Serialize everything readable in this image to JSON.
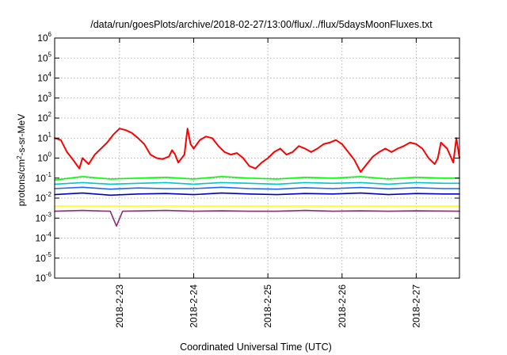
{
  "chart_data": {
    "type": "line",
    "title": "/data/run/goesPlots/archive/2018-02-27/13:00/flux/../flux/5daysMoonFluxes.txt",
    "xlabel": "Coordinated Universal Time (UTC)",
    "ylabel": {
      "base": "protons/cm",
      "sup": "2",
      "rest": "-s-sr-MeV"
    },
    "yscale": "log",
    "ylim": [
      1e-06,
      1000000.0
    ],
    "y_ticks": [
      {
        "mant": "10",
        "exp": "-6"
      },
      {
        "mant": "10",
        "exp": "-5"
      },
      {
        "mant": "10",
        "exp": "-4"
      },
      {
        "mant": "10",
        "exp": "-3"
      },
      {
        "mant": "10",
        "exp": "-2"
      },
      {
        "mant": "10",
        "exp": "-1"
      },
      {
        "mant": "10",
        "exp": "0"
      },
      {
        "mant": "10",
        "exp": "1"
      },
      {
        "mant": "10",
        "exp": "2"
      },
      {
        "mant": "10",
        "exp": "3"
      },
      {
        "mant": "10",
        "exp": "4"
      },
      {
        "mant": "10",
        "exp": "5"
      },
      {
        "mant": "10",
        "exp": "6"
      }
    ],
    "x_start": "2018-02-22T03:00",
    "x_end": "2018-02-27T14:00",
    "x_ticks": [
      {
        "label": "2018-2-23",
        "t": "2018-02-23T00:00"
      },
      {
        "label": "2018-2-24",
        "t": "2018-02-24T00:00"
      },
      {
        "label": "2018-2-25",
        "t": "2018-02-25T00:00"
      },
      {
        "label": "2018-2-26",
        "t": "2018-02-26T00:00"
      },
      {
        "label": "2018-2-27",
        "t": "2018-02-27T00:00"
      }
    ],
    "grid": true,
    "legend": "none",
    "series": [
      {
        "color": "#ff0000",
        "points": [
          [
            "2018-02-22T03:00",
            10
          ],
          [
            "2018-02-22T05:00",
            8
          ],
          [
            "2018-02-22T07:00",
            2
          ],
          [
            "2018-02-22T09:00",
            0.8
          ],
          [
            "2018-02-22T11:00",
            0.3
          ],
          [
            "2018-02-22T12:00",
            1
          ],
          [
            "2018-02-22T14:00",
            0.5
          ],
          [
            "2018-02-22T16:00",
            1.5
          ],
          [
            "2018-02-22T18:00",
            3
          ],
          [
            "2018-02-22T20:00",
            6
          ],
          [
            "2018-02-22T22:00",
            15
          ],
          [
            "2018-02-23T00:00",
            30
          ],
          [
            "2018-02-23T02:00",
            25
          ],
          [
            "2018-02-23T04:00",
            18
          ],
          [
            "2018-02-23T06:00",
            10
          ],
          [
            "2018-02-23T08:00",
            5
          ],
          [
            "2018-02-23T10:00",
            1.5
          ],
          [
            "2018-02-23T12:00",
            1
          ],
          [
            "2018-02-23T14:00",
            0.9
          ],
          [
            "2018-02-23T16:00",
            1.2
          ],
          [
            "2018-02-23T17:00",
            2.5
          ],
          [
            "2018-02-23T18:00",
            1.5
          ],
          [
            "2018-02-23T19:00",
            0.6
          ],
          [
            "2018-02-23T21:00",
            1.5
          ],
          [
            "2018-02-23T22:00",
            30
          ],
          [
            "2018-02-23T23:00",
            5
          ],
          [
            "2018-02-24T00:00",
            3
          ],
          [
            "2018-02-24T02:00",
            8
          ],
          [
            "2018-02-24T04:00",
            12
          ],
          [
            "2018-02-24T06:00",
            10
          ],
          [
            "2018-02-24T08:00",
            4
          ],
          [
            "2018-02-24T10:00",
            2
          ],
          [
            "2018-02-24T12:00",
            1.5
          ],
          [
            "2018-02-24T14:00",
            1.8
          ],
          [
            "2018-02-24T16:00",
            1
          ],
          [
            "2018-02-24T18:00",
            0.4
          ],
          [
            "2018-02-24T20:00",
            0.3
          ],
          [
            "2018-02-24T22:00",
            0.6
          ],
          [
            "2018-02-25T00:00",
            1
          ],
          [
            "2018-02-25T02:00",
            2
          ],
          [
            "2018-02-25T04:00",
            3
          ],
          [
            "2018-02-25T06:00",
            1.5
          ],
          [
            "2018-02-25T08:00",
            2
          ],
          [
            "2018-02-25T10:00",
            4
          ],
          [
            "2018-02-25T12:00",
            3
          ],
          [
            "2018-02-25T14:00",
            2
          ],
          [
            "2018-02-25T16:00",
            3
          ],
          [
            "2018-02-25T18:00",
            5
          ],
          [
            "2018-02-25T20:00",
            6
          ],
          [
            "2018-02-25T22:00",
            8
          ],
          [
            "2018-02-26T00:00",
            5
          ],
          [
            "2018-02-26T02:00",
            2
          ],
          [
            "2018-02-26T04:00",
            0.8
          ],
          [
            "2018-02-26T06:00",
            0.2
          ],
          [
            "2018-02-26T08:00",
            0.5
          ],
          [
            "2018-02-26T10:00",
            1.2
          ],
          [
            "2018-02-26T12:00",
            2
          ],
          [
            "2018-02-26T14:00",
            3
          ],
          [
            "2018-02-26T16:00",
            2
          ],
          [
            "2018-02-26T18:00",
            3
          ],
          [
            "2018-02-26T20:00",
            4
          ],
          [
            "2018-02-26T22:00",
            6
          ],
          [
            "2018-02-27T00:00",
            5
          ],
          [
            "2018-02-27T02:00",
            3
          ],
          [
            "2018-02-27T04:00",
            1
          ],
          [
            "2018-02-27T06:00",
            0.5
          ],
          [
            "2018-02-27T07:00",
            1
          ],
          [
            "2018-02-27T08:00",
            6
          ],
          [
            "2018-02-27T10:00",
            3
          ],
          [
            "2018-02-27T12:00",
            0.6
          ],
          [
            "2018-02-27T13:00",
            10
          ],
          [
            "2018-02-27T14:00",
            1
          ]
        ]
      },
      {
        "color": "#00ff00",
        "points": [
          [
            "2018-02-22T03:00",
            0.08
          ],
          [
            "2018-02-22T12:00",
            0.12
          ],
          [
            "2018-02-22T21:00",
            0.09
          ],
          [
            "2018-02-23T06:00",
            0.1
          ],
          [
            "2018-02-23T15:00",
            0.11
          ],
          [
            "2018-02-24T00:00",
            0.09
          ],
          [
            "2018-02-24T09:00",
            0.12
          ],
          [
            "2018-02-24T18:00",
            0.1
          ],
          [
            "2018-02-25T03:00",
            0.09
          ],
          [
            "2018-02-25T12:00",
            0.11
          ],
          [
            "2018-02-25T21:00",
            0.1
          ],
          [
            "2018-02-26T06:00",
            0.12
          ],
          [
            "2018-02-26T15:00",
            0.09
          ],
          [
            "2018-02-27T00:00",
            0.11
          ],
          [
            "2018-02-27T09:00",
            0.1
          ],
          [
            "2018-02-27T14:00",
            0.1
          ]
        ]
      },
      {
        "color": "#00c8c8",
        "points": [
          [
            "2018-02-22T03:00",
            0.05
          ],
          [
            "2018-02-22T12:00",
            0.06
          ],
          [
            "2018-02-22T21:00",
            0.05
          ],
          [
            "2018-02-23T06:00",
            0.055
          ],
          [
            "2018-02-23T15:00",
            0.06
          ],
          [
            "2018-02-24T00:00",
            0.05
          ],
          [
            "2018-02-24T09:00",
            0.06
          ],
          [
            "2018-02-24T18:00",
            0.055
          ],
          [
            "2018-02-25T03:00",
            0.05
          ],
          [
            "2018-02-25T12:00",
            0.06
          ],
          [
            "2018-02-25T21:00",
            0.055
          ],
          [
            "2018-02-26T06:00",
            0.06
          ],
          [
            "2018-02-26T15:00",
            0.05
          ],
          [
            "2018-02-27T00:00",
            0.06
          ],
          [
            "2018-02-27T09:00",
            0.055
          ],
          [
            "2018-02-27T14:00",
            0.055
          ]
        ]
      },
      {
        "color": "#1e64ff",
        "points": [
          [
            "2018-02-22T03:00",
            0.03
          ],
          [
            "2018-02-22T12:00",
            0.035
          ],
          [
            "2018-02-22T21:00",
            0.028
          ],
          [
            "2018-02-23T06:00",
            0.032
          ],
          [
            "2018-02-23T15:00",
            0.03
          ],
          [
            "2018-02-24T00:00",
            0.03
          ],
          [
            "2018-02-24T09:00",
            0.035
          ],
          [
            "2018-02-24T18:00",
            0.03
          ],
          [
            "2018-02-25T03:00",
            0.028
          ],
          [
            "2018-02-25T12:00",
            0.033
          ],
          [
            "2018-02-25T21:00",
            0.03
          ],
          [
            "2018-02-26T06:00",
            0.034
          ],
          [
            "2018-02-26T15:00",
            0.029
          ],
          [
            "2018-02-27T00:00",
            0.033
          ],
          [
            "2018-02-27T09:00",
            0.03
          ],
          [
            "2018-02-27T14:00",
            0.03
          ]
        ]
      },
      {
        "color": "#0000c8",
        "points": [
          [
            "2018-02-22T03:00",
            0.015
          ],
          [
            "2018-02-22T12:00",
            0.018
          ],
          [
            "2018-02-22T21:00",
            0.014
          ],
          [
            "2018-02-23T06:00",
            0.016
          ],
          [
            "2018-02-23T15:00",
            0.017
          ],
          [
            "2018-02-24T00:00",
            0.015
          ],
          [
            "2018-02-24T09:00",
            0.018
          ],
          [
            "2018-02-24T18:00",
            0.016
          ],
          [
            "2018-02-25T03:00",
            0.015
          ],
          [
            "2018-02-25T12:00",
            0.017
          ],
          [
            "2018-02-25T21:00",
            0.016
          ],
          [
            "2018-02-26T06:00",
            0.018
          ],
          [
            "2018-02-26T15:00",
            0.015
          ],
          [
            "2018-02-27T00:00",
            0.017
          ],
          [
            "2018-02-27T09:00",
            0.016
          ],
          [
            "2018-02-27T14:00",
            0.016
          ]
        ]
      },
      {
        "color": "#ffff00",
        "points": [
          [
            "2018-02-22T03:00",
            0.004
          ],
          [
            "2018-02-23T00:00",
            0.004
          ],
          [
            "2018-02-24T00:00",
            0.004
          ],
          [
            "2018-02-25T00:00",
            0.004
          ],
          [
            "2018-02-26T00:00",
            0.004
          ],
          [
            "2018-02-27T00:00",
            0.004
          ],
          [
            "2018-02-27T14:00",
            0.004
          ]
        ]
      },
      {
        "color": "#8c2d6e",
        "points": [
          [
            "2018-02-22T03:00",
            0.0022
          ],
          [
            "2018-02-22T12:00",
            0.0024
          ],
          [
            "2018-02-22T21:00",
            0.0022
          ],
          [
            "2018-02-22T23:00",
            0.0004
          ],
          [
            "2018-02-23T01:00",
            0.0022
          ],
          [
            "2018-02-23T15:00",
            0.0024
          ],
          [
            "2018-02-24T00:00",
            0.0022
          ],
          [
            "2018-02-24T09:00",
            0.0023
          ],
          [
            "2018-02-24T18:00",
            0.0022
          ],
          [
            "2018-02-25T03:00",
            0.0022
          ],
          [
            "2018-02-25T12:00",
            0.0024
          ],
          [
            "2018-02-25T21:00",
            0.0022
          ],
          [
            "2018-02-26T06:00",
            0.0023
          ],
          [
            "2018-02-26T15:00",
            0.0022
          ],
          [
            "2018-02-27T00:00",
            0.0023
          ],
          [
            "2018-02-27T14:00",
            0.0022
          ]
        ]
      }
    ]
  }
}
